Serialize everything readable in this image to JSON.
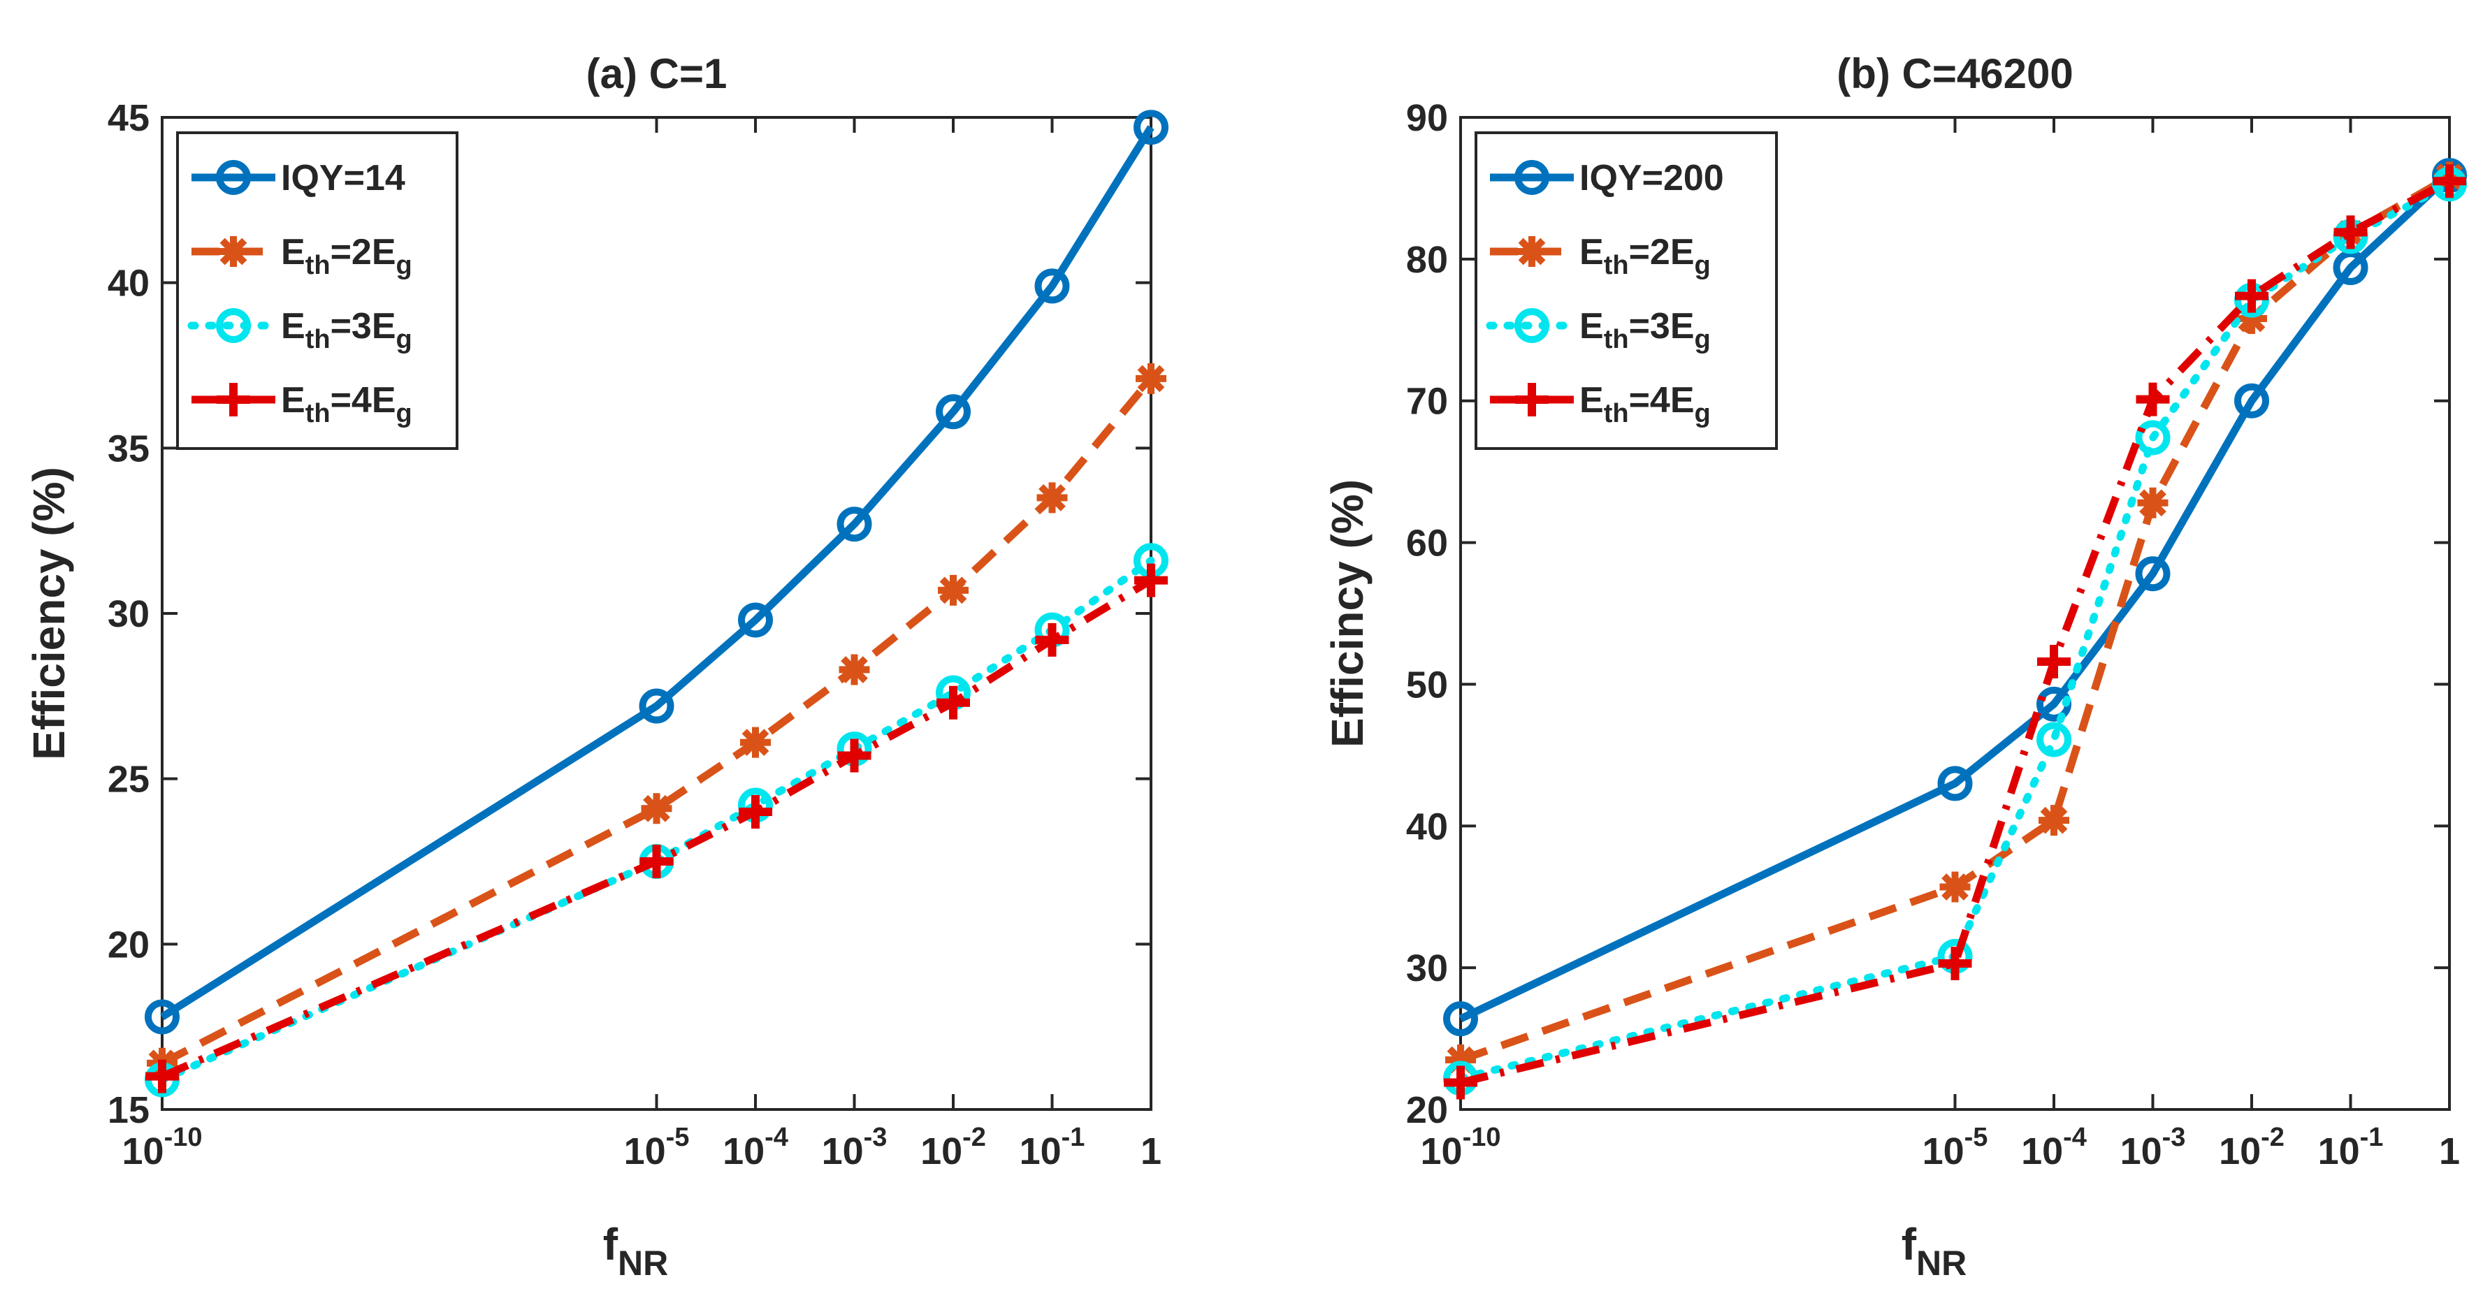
{
  "figure": {
    "xlabel_main": "f",
    "xlabel_sub": "NR",
    "ylabel": "Efficiency (%)"
  },
  "chart_data": [
    {
      "type": "line",
      "title": "(a) C=1",
      "xscale": "log",
      "x": [
        1e-10,
        1e-05,
        0.0001,
        0.001,
        0.01,
        0.1,
        1
      ],
      "x_tick_labels": [
        {
          "base": "10",
          "exp": "-10"
        },
        {
          "base": "10",
          "exp": "-5"
        },
        {
          "base": "10",
          "exp": "-4"
        },
        {
          "base": "10",
          "exp": "-3"
        },
        {
          "base": "10",
          "exp": "-2"
        },
        {
          "base": "10",
          "exp": "-1"
        },
        {
          "base": "1",
          "exp": ""
        }
      ],
      "ylim": [
        15,
        45
      ],
      "yticks": [
        15,
        20,
        25,
        30,
        35,
        40,
        45
      ],
      "ylabel": "Efficiency (%)",
      "xlabel": "fNR",
      "legend_position": "top-left",
      "series": [
        {
          "name": "IQY=14",
          "label_parts": [
            {
              "t": "IQY=14",
              "s": "n"
            }
          ],
          "color": "#0072BD",
          "dash": "solid",
          "marker": "circle",
          "values": [
            17.8,
            27.2,
            29.8,
            32.7,
            36.1,
            39.9,
            44.7
          ]
        },
        {
          "name": "Eth=2Eg",
          "label_parts": [
            {
              "t": "E",
              "s": "n"
            },
            {
              "t": "th",
              "s": "sub"
            },
            {
              "t": "=2E",
              "s": "n"
            },
            {
              "t": "g",
              "s": "sub"
            }
          ],
          "color": "#D95319",
          "dash": "dashed",
          "marker": "asterisk",
          "values": [
            16.4,
            24.1,
            26.1,
            28.3,
            30.7,
            33.5,
            37.1
          ]
        },
        {
          "name": "Eth=3Eg",
          "label_parts": [
            {
              "t": "E",
              "s": "n"
            },
            {
              "t": "th",
              "s": "sub"
            },
            {
              "t": "=3E",
              "s": "n"
            },
            {
              "t": "g",
              "s": "sub"
            }
          ],
          "color": "#00E5EE",
          "dash": "dotted",
          "marker": "circle",
          "values": [
            15.9,
            22.5,
            24.2,
            25.9,
            27.6,
            29.5,
            31.6
          ]
        },
        {
          "name": "Eth=4Eg",
          "label_parts": [
            {
              "t": "E",
              "s": "n"
            },
            {
              "t": "th",
              "s": "sub"
            },
            {
              "t": "=4E",
              "s": "n"
            },
            {
              "t": "g",
              "s": "sub"
            }
          ],
          "color": "#E00000",
          "dash": "dashdot",
          "marker": "plus",
          "values": [
            16.0,
            22.5,
            24.0,
            25.7,
            27.3,
            29.2,
            31.0
          ]
        }
      ]
    },
    {
      "type": "line",
      "title": "(b) C=46200",
      "xscale": "log",
      "x": [
        1e-10,
        1e-05,
        0.0001,
        0.001,
        0.01,
        0.1,
        1
      ],
      "x_tick_labels": [
        {
          "base": "10",
          "exp": "-10"
        },
        {
          "base": "10",
          "exp": "-5"
        },
        {
          "base": "10",
          "exp": "-4"
        },
        {
          "base": "10",
          "exp": "-3"
        },
        {
          "base": "10",
          "exp": "-2"
        },
        {
          "base": "10",
          "exp": "-1"
        },
        {
          "base": "1",
          "exp": ""
        }
      ],
      "ylim": [
        20,
        90
      ],
      "yticks": [
        20,
        30,
        40,
        50,
        60,
        70,
        80,
        90
      ],
      "ylabel": "Efficincy (%)",
      "xlabel": "fNR",
      "legend_position": "top-left",
      "series": [
        {
          "name": "IQY=200",
          "label_parts": [
            {
              "t": "IQY=200",
              "s": "n"
            }
          ],
          "color": "#0072BD",
          "dash": "solid",
          "marker": "circle",
          "values": [
            26.4,
            43.0,
            48.6,
            57.8,
            70.0,
            79.4,
            85.9
          ]
        },
        {
          "name": "Eth=2Eg",
          "label_parts": [
            {
              "t": "E",
              "s": "n"
            },
            {
              "t": "th",
              "s": "sub"
            },
            {
              "t": "=2E",
              "s": "n"
            },
            {
              "t": "g",
              "s": "sub"
            }
          ],
          "color": "#D95319",
          "dash": "dashed",
          "marker": "asterisk",
          "values": [
            23.5,
            35.7,
            40.4,
            62.8,
            75.8,
            81.8,
            85.8
          ]
        },
        {
          "name": "Eth=3Eg",
          "label_parts": [
            {
              "t": "E",
              "s": "n"
            },
            {
              "t": "th",
              "s": "sub"
            },
            {
              "t": "=3E",
              "s": "n"
            },
            {
              "t": "g",
              "s": "sub"
            }
          ],
          "color": "#00E5EE",
          "dash": "dotted",
          "marker": "circle",
          "values": [
            22.2,
            30.8,
            46.1,
            67.4,
            77.1,
            81.6,
            85.3
          ]
        },
        {
          "name": "Eth=4Eg",
          "label_parts": [
            {
              "t": "E",
              "s": "n"
            },
            {
              "t": "th",
              "s": "sub"
            },
            {
              "t": "=4E",
              "s": "n"
            },
            {
              "t": "g",
              "s": "sub"
            }
          ],
          "color": "#E00000",
          "dash": "dashdot",
          "marker": "plus",
          "values": [
            21.9,
            30.3,
            51.6,
            70.1,
            77.4,
            81.9,
            85.5
          ]
        }
      ]
    }
  ]
}
